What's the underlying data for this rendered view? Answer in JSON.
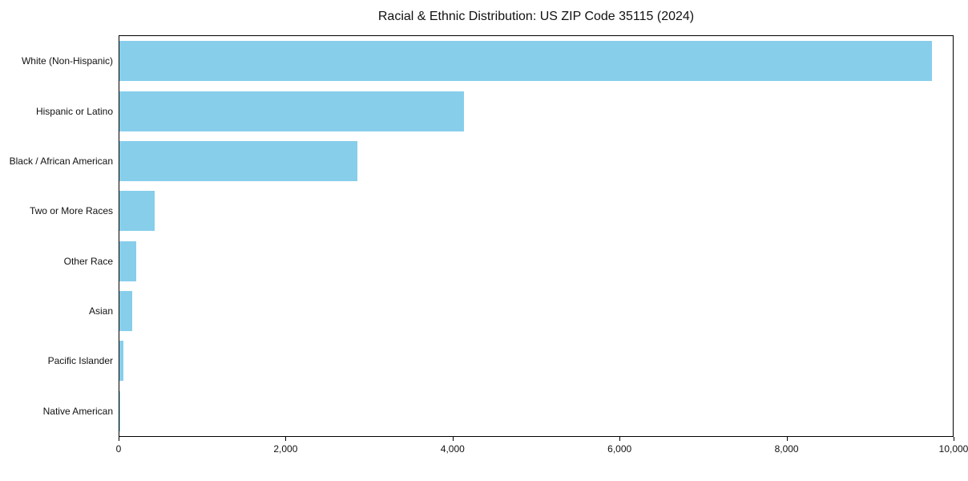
{
  "chart_data": {
    "type": "bar",
    "orientation": "horizontal",
    "title": "Racial & Ethnic Distribution: US ZIP Code 35115 (2024)",
    "categories": [
      "White (Non-Hispanic)",
      "Hispanic or Latino",
      "Black / African American",
      "Two or More Races",
      "Other Race",
      "Asian",
      "Pacific Islander",
      "Native American"
    ],
    "values": [
      9750,
      4130,
      2860,
      425,
      200,
      150,
      50,
      5
    ],
    "xlabel": "",
    "ylabel": "",
    "xlim": [
      0,
      10000
    ],
    "x_ticks": [
      0,
      2000,
      4000,
      6000,
      8000,
      10000
    ],
    "x_tick_labels": [
      "0",
      "2,000",
      "4,000",
      "6,000",
      "8,000",
      "10,000"
    ],
    "bar_color": "#87CEEB",
    "grid": false,
    "legend": "none",
    "background_color": "#FFFFFF"
  }
}
